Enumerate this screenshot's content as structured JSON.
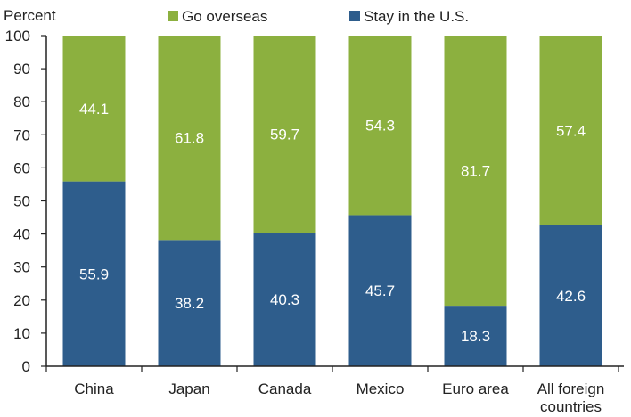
{
  "chart_data": {
    "type": "bar",
    "stacked": true,
    "ylabel": "Percent",
    "ylim": [
      0,
      100
    ],
    "yticks": [
      0,
      10,
      20,
      30,
      40,
      50,
      60,
      70,
      80,
      90,
      100
    ],
    "categories": [
      "China",
      "Japan",
      "Canada",
      "Mexico",
      "Euro area",
      "All foreign countries"
    ],
    "category_lines": [
      [
        "China"
      ],
      [
        "Japan"
      ],
      [
        "Canada"
      ],
      [
        "Mexico"
      ],
      [
        "Euro area"
      ],
      [
        "All foreign",
        "countries"
      ]
    ],
    "legend_position": "top",
    "series": [
      {
        "name": "Stay in the U.S.",
        "color": "#2e5d8c",
        "values": [
          55.9,
          38.2,
          40.3,
          45.7,
          18.3,
          42.6
        ]
      },
      {
        "name": "Go overseas",
        "color": "#8cb03f",
        "values": [
          44.1,
          61.8,
          59.7,
          54.3,
          81.7,
          57.4
        ]
      }
    ]
  }
}
